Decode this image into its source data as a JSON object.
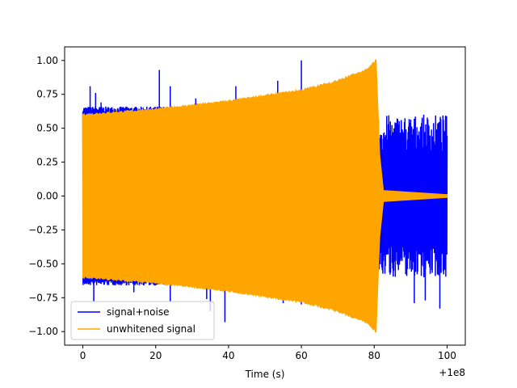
{
  "chart_data": {
    "type": "line",
    "title": "",
    "xlabel": "Time (s)",
    "ylabel": "",
    "x_offset_label": "+1e8",
    "xlim": [
      -5,
      105
    ],
    "ylim": [
      -1.1,
      1.1
    ],
    "xticks": [
      0,
      20,
      40,
      60,
      80,
      100
    ],
    "xtick_labels": [
      "0",
      "20",
      "40",
      "60",
      "80",
      "100"
    ],
    "yticks": [
      -1.0,
      -0.75,
      -0.5,
      -0.25,
      0.0,
      0.25,
      0.5,
      0.75,
      1.0
    ],
    "ytick_labels": [
      "−1.00",
      "−0.75",
      "−0.50",
      "−0.25",
      "0.00",
      "0.25",
      "0.50",
      "0.75",
      "1.00"
    ],
    "grid": false,
    "legend_position": "lower-left",
    "series": [
      {
        "name": "signal+noise",
        "color": "#0000ff",
        "x_range": [
          0,
          100
        ],
        "envelope_before_81": [
          0.62,
          0.66
        ],
        "envelope_after_81": [
          0.3,
          0.6
        ],
        "spikes": [
          {
            "x": 2,
            "y": 0.81
          },
          {
            "x": 3.5,
            "y": 0.76
          },
          {
            "x": 5,
            "y": 0.69
          },
          {
            "x": 21,
            "y": 0.93
          },
          {
            "x": 24,
            "y": 0.81
          },
          {
            "x": 31,
            "y": 0.72
          },
          {
            "x": 42,
            "y": 0.81
          },
          {
            "x": 53.5,
            "y": 0.85
          },
          {
            "x": 60,
            "y": 1.0
          },
          {
            "x": 70,
            "y": 0.8
          },
          {
            "x": 76,
            "y": 0.79
          },
          {
            "x": 3,
            "y": -0.78
          },
          {
            "x": 14,
            "y": -0.71
          },
          {
            "x": 24,
            "y": -0.78
          },
          {
            "x": 34,
            "y": -0.76
          },
          {
            "x": 35,
            "y": -0.85
          },
          {
            "x": 39,
            "y": -0.93
          },
          {
            "x": 46,
            "y": -0.65
          },
          {
            "x": 55,
            "y": -0.79
          },
          {
            "x": 60,
            "y": -0.8
          },
          {
            "x": 80,
            "y": -0.85
          },
          {
            "x": 91,
            "y": -0.79
          },
          {
            "x": 94,
            "y": -0.77
          },
          {
            "x": 98,
            "y": -0.83
          }
        ]
      },
      {
        "name": "unwhitened signal",
        "color": "#ffa500",
        "amplitude_points": [
          {
            "x": 0,
            "y": 0.6
          },
          {
            "x": 20,
            "y": 0.64
          },
          {
            "x": 40,
            "y": 0.7
          },
          {
            "x": 60,
            "y": 0.78
          },
          {
            "x": 70,
            "y": 0.85
          },
          {
            "x": 78,
            "y": 0.93
          },
          {
            "x": 80.5,
            "y": 1.0
          },
          {
            "x": 81.5,
            "y": 0.3
          },
          {
            "x": 82.5,
            "y": 0.04
          },
          {
            "x": 100,
            "y": 0.01
          }
        ]
      }
    ]
  }
}
